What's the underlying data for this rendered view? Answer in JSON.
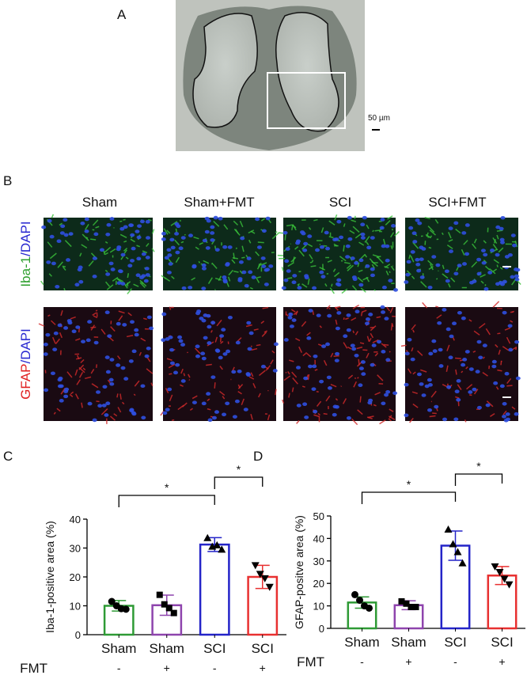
{
  "panel_a": {
    "label": "A",
    "scale_label": "50 µm"
  },
  "panel_b": {
    "label": "B",
    "columns": [
      "Sham",
      "Sham+FMT",
      "SCI",
      "SCI+FMT"
    ],
    "rows": [
      [
        "Iba-1",
        "/DAPI"
      ],
      [
        "GFAP",
        "/DAPI"
      ]
    ]
  },
  "chart_data": [
    {
      "type": "bar",
      "panel_label": "C",
      "ylabel": "Iba-1-positive area (%)",
      "categories": [
        "Sham",
        "Sham",
        "SCI",
        "SCI"
      ],
      "factor_label": "FMT",
      "factor_values": [
        "-",
        "+",
        "-",
        "+"
      ],
      "values": [
        10,
        10.2,
        31.2,
        20
      ],
      "errors": [
        1.8,
        3.5,
        2.4,
        4
      ],
      "points": [
        [
          11.5,
          10,
          9,
          8.8
        ],
        [
          13.8,
          10.5,
          9.2,
          7.5
        ],
        [
          33.5,
          30.5,
          31,
          29.5
        ],
        [
          24,
          21,
          19.5,
          16.5
        ]
      ],
      "colors": [
        "#2e9a35",
        "#8e44ad",
        "#2424c8",
        "#e83030"
      ],
      "markers": [
        "circle",
        "square",
        "triangle",
        "triangle-down"
      ],
      "significance": [
        {
          "from": 0,
          "to": 2,
          "label": "*"
        },
        {
          "from": 2,
          "to": 3,
          "label": "*"
        }
      ],
      "ylim": [
        0,
        40
      ],
      "yticks": [
        0,
        10,
        20,
        30,
        40
      ]
    },
    {
      "type": "bar",
      "panel_label": "D",
      "ylabel": "GFAP-positve area  (%)",
      "categories": [
        "Sham",
        "Sham",
        "SCI",
        "SCI"
      ],
      "factor_label": "FMT",
      "factor_values": [
        "-",
        "+",
        "-",
        "+"
      ],
      "values": [
        11.5,
        10.3,
        36.8,
        23.5
      ],
      "errors": [
        2.5,
        2,
        6.5,
        4
      ],
      "points": [
        [
          15,
          12.5,
          10,
          9
        ],
        [
          12,
          11,
          9.5,
          9.5
        ],
        [
          44,
          37.5,
          34,
          29
        ],
        [
          27.5,
          25,
          22,
          19.5
        ]
      ],
      "colors": [
        "#2e9a35",
        "#8e44ad",
        "#2424c8",
        "#e83030"
      ],
      "markers": [
        "circle",
        "square",
        "triangle",
        "triangle-down"
      ],
      "significance": [
        {
          "from": 0,
          "to": 2,
          "label": "*"
        },
        {
          "from": 2,
          "to": 3,
          "label": "*"
        }
      ],
      "ylim": [
        0,
        50
      ],
      "yticks": [
        0,
        10,
        20,
        30,
        40,
        50
      ]
    }
  ]
}
